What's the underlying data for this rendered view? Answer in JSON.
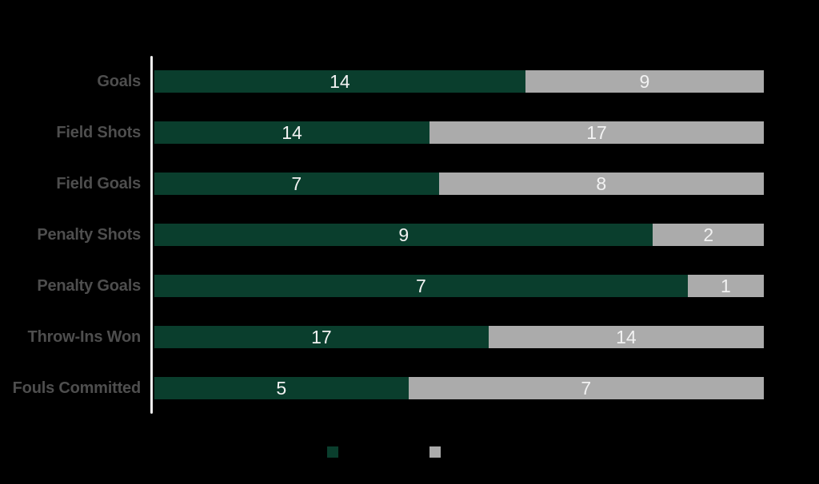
{
  "chart_data": {
    "type": "bar",
    "variant": "horizontal-100pct-stacked",
    "orientation": "horizontal",
    "title": "",
    "xlabel": "",
    "ylabel": "",
    "grid": false,
    "categories": [
      "Goals",
      "Field Shots",
      "Field Goals",
      "Penalty Shots",
      "Penalty Goals",
      "Throw-Ins Won",
      "Fouls Committed"
    ],
    "series": [
      {
        "name": "green-series",
        "color": "#0a3e2d",
        "values": [
          14,
          14,
          7,
          9,
          7,
          17,
          5
        ]
      },
      {
        "name": "gray-series",
        "color": "#ababab",
        "values": [
          9,
          17,
          8,
          2,
          1,
          14,
          7
        ]
      }
    ],
    "legend": {
      "position": "bottom-center",
      "labels_visible": false,
      "swatch_colors": [
        "#0a3e2d",
        "#ababab"
      ]
    }
  },
  "colors": {
    "background": "#000000",
    "axis_line": "#f1f1f1",
    "category_label_text": "#4e4e4e",
    "value_label_text": "#f2f2f2"
  }
}
